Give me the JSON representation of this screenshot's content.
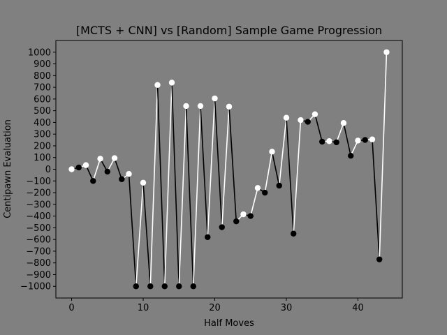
{
  "chart_data": {
    "type": "line",
    "title": "[MCTS + CNN] vs [Random] Sample Game Progression",
    "xlabel": "Half Moves",
    "ylabel": "Centipawn Evaluation",
    "xlim": [
      -2.2,
      46.2
    ],
    "ylim": [
      -1100,
      1100
    ],
    "xticks": [
      0,
      10,
      20,
      30,
      40
    ],
    "yticks": [
      -1000,
      -900,
      -800,
      -700,
      -600,
      -500,
      -400,
      -300,
      -200,
      -100,
      0,
      100,
      200,
      300,
      400,
      500,
      600,
      700,
      800,
      900,
      1000
    ],
    "grid": false,
    "background_color": "#808080",
    "plot_background_color": "#808080",
    "white_color": "#ffffff",
    "black_color": "#000000",
    "x": [
      0,
      1,
      2,
      3,
      4,
      5,
      6,
      7,
      8,
      9,
      10,
      11,
      12,
      13,
      14,
      15,
      16,
      17,
      18,
      19,
      20,
      21,
      22,
      23,
      24,
      25,
      26,
      27,
      28,
      29,
      30,
      31,
      32,
      33,
      34,
      35,
      36,
      37,
      38,
      39,
      40,
      41,
      42,
      43,
      44
    ],
    "y": [
      0,
      15,
      35,
      -100,
      90,
      -20,
      95,
      -85,
      -40,
      -1000,
      -115,
      -1000,
      720,
      -1000,
      740,
      -1000,
      540,
      -1000,
      540,
      -580,
      605,
      -495,
      535,
      -445,
      -385,
      -400,
      -160,
      -200,
      150,
      -140,
      440,
      -550,
      420,
      405,
      470,
      235,
      240,
      230,
      395,
      115,
      245,
      250,
      255,
      -770,
      1000
    ]
  }
}
